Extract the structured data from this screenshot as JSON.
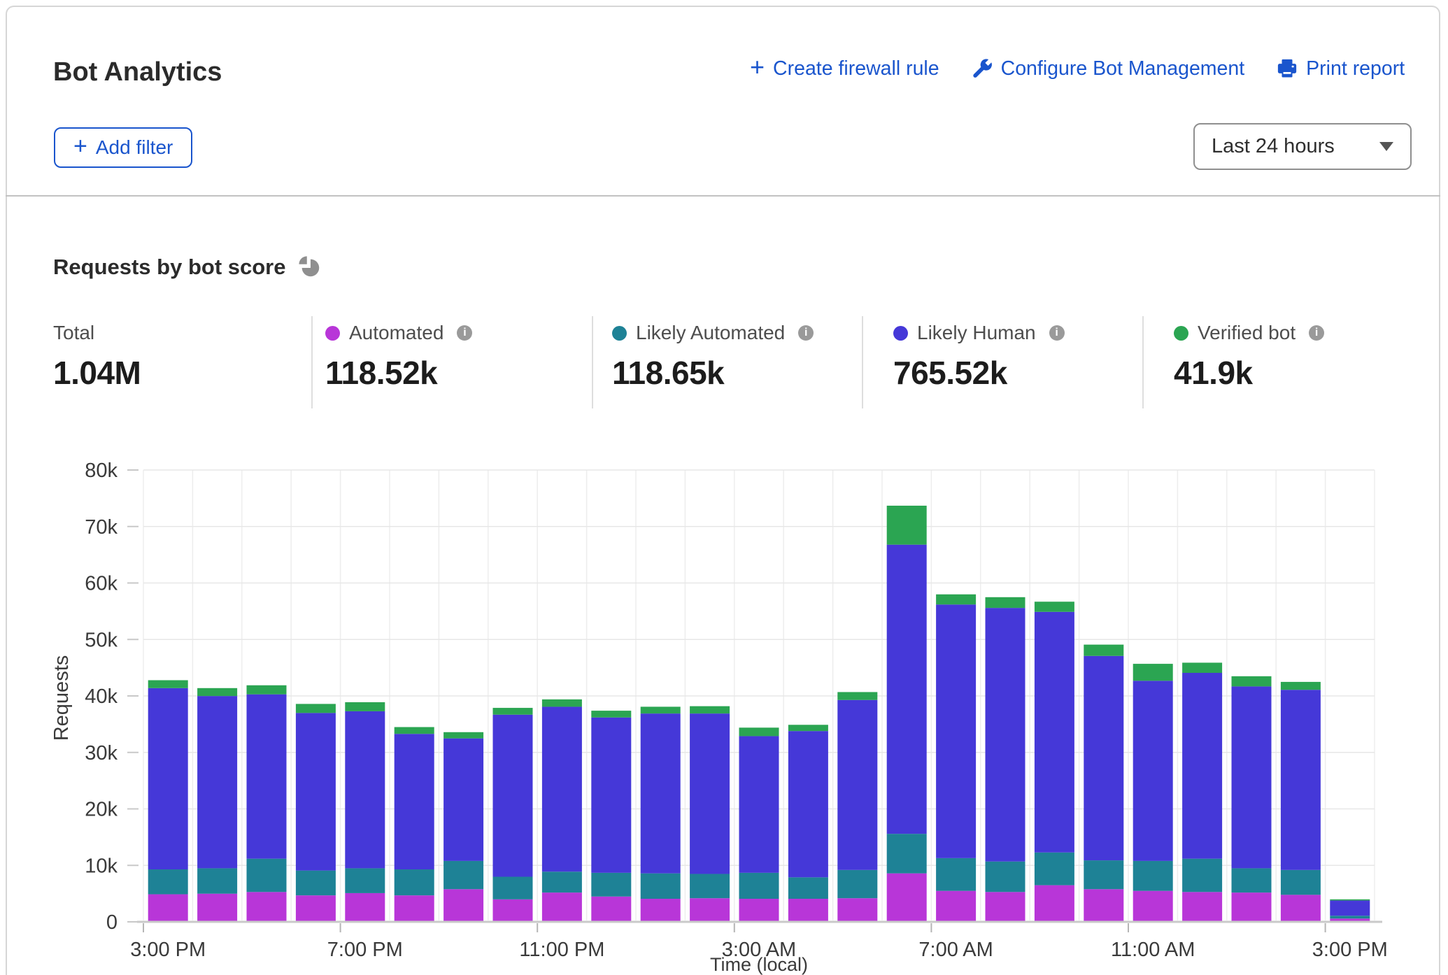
{
  "header": {
    "title": "Bot Analytics",
    "actions": [
      {
        "label": "Create firewall rule",
        "icon": "plus-icon"
      },
      {
        "label": "Configure Bot Management",
        "icon": "wrench-icon"
      },
      {
        "label": "Print report",
        "icon": "printer-icon"
      }
    ],
    "add_filter_label": "Add filter",
    "time_range_value": "Last 24 hours"
  },
  "section": {
    "title": "Requests by bot score"
  },
  "stats": {
    "total": {
      "label": "Total",
      "value": "1.04M"
    },
    "items": [
      {
        "label": "Automated",
        "value": "118.52k",
        "color": "#b836d8"
      },
      {
        "label": "Likely Automated",
        "value": "118.65k",
        "color": "#1e8296"
      },
      {
        "label": "Likely Human",
        "value": "765.52k",
        "color": "#4538d8"
      },
      {
        "label": "Verified bot",
        "value": "41.9k",
        "color": "#2ba552"
      }
    ]
  },
  "colors": {
    "link_blue": "#1a55cd",
    "automated": "#b836d8",
    "likely_automated": "#1e8296",
    "likely_human": "#4538d8",
    "verified_bot": "#2ba552"
  },
  "chart_data": {
    "type": "bar",
    "stacked": true,
    "title": "Requests by bot score",
    "xlabel": "Time (local)",
    "ylabel": "Requests",
    "ylim": [
      0,
      80000
    ],
    "grid": true,
    "n_bars": 25,
    "y_ticks": [
      "0",
      "10k",
      "20k",
      "30k",
      "40k",
      "50k",
      "60k",
      "70k",
      "80k"
    ],
    "x_tick_labels": [
      "3:00 PM",
      "7:00 PM",
      "11:00 PM",
      "3:00 AM",
      "7:00 AM",
      "11:00 AM",
      "3:00 PM"
    ],
    "x_tick_slots": [
      0,
      4,
      8,
      12,
      16,
      20,
      24
    ],
    "series": [
      {
        "name": "Automated",
        "color": "#b836d8",
        "values": [
          4700,
          4800,
          5100,
          4500,
          4900,
          4500,
          5600,
          3800,
          5000,
          4300,
          3900,
          4000,
          3900,
          3900,
          4000,
          8400,
          5300,
          5100,
          6300,
          5600,
          5300,
          5100,
          5000,
          4600,
          400
        ]
      },
      {
        "name": "Likely Automated",
        "color": "#1e8296",
        "values": [
          4400,
          4500,
          5900,
          4400,
          4400,
          4600,
          5000,
          4000,
          3700,
          4200,
          4500,
          4300,
          4600,
          3800,
          5000,
          7000,
          5800,
          5400,
          5800,
          5100,
          5300,
          5900,
          4300,
          4400,
          500
        ]
      },
      {
        "name": "Likely Human",
        "color": "#4538d8",
        "values": [
          32100,
          30500,
          29100,
          27900,
          27800,
          24000,
          21700,
          28700,
          29200,
          27500,
          28300,
          28400,
          24200,
          25900,
          30100,
          51200,
          44900,
          44900,
          42600,
          36200,
          31900,
          32900,
          32200,
          31900,
          2700
        ]
      },
      {
        "name": "Verified bot",
        "color": "#2ba552",
        "values": [
          1400,
          1400,
          1600,
          1600,
          1600,
          1200,
          1100,
          1200,
          1300,
          1200,
          1200,
          1300,
          1500,
          1100,
          1400,
          6900,
          1800,
          1900,
          1800,
          2000,
          3000,
          1800,
          1800,
          1400,
          200
        ]
      }
    ]
  }
}
